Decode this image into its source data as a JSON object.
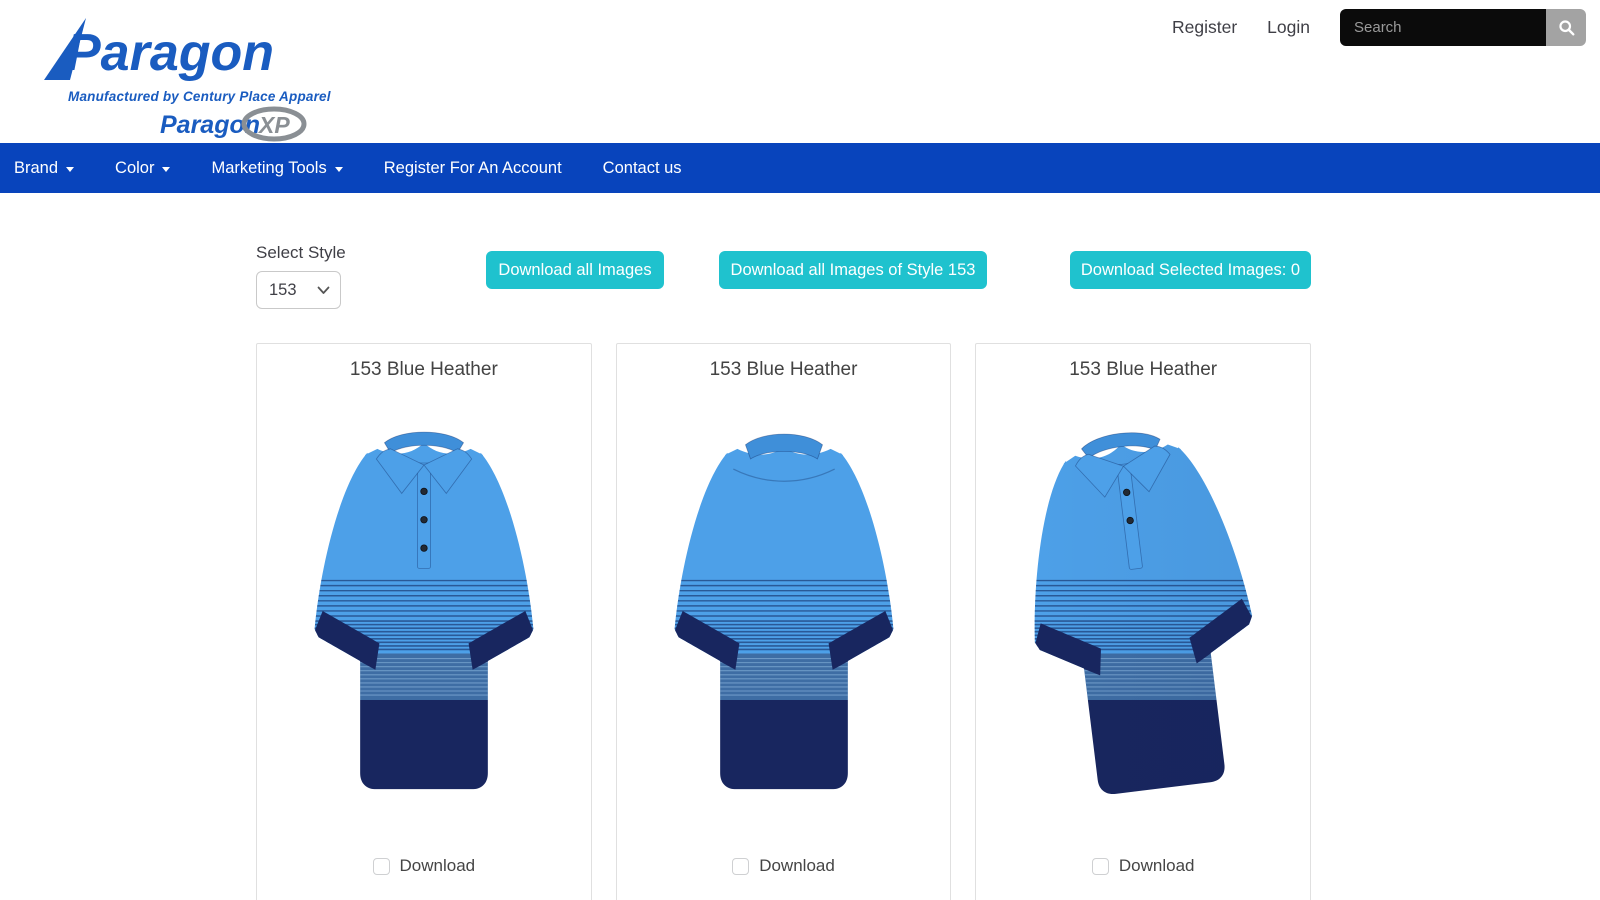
{
  "header": {
    "logo": {
      "brand": "Paragon",
      "tagline": "Manufactured by Century Place Apparel",
      "xp_brand": "Paragon",
      "xp_suffix": "XP"
    },
    "register_label": "Register",
    "login_label": "Login",
    "search": {
      "placeholder": "Search"
    }
  },
  "nav": {
    "items": [
      {
        "label": "Brand",
        "has_dropdown": true
      },
      {
        "label": "Color",
        "has_dropdown": true
      },
      {
        "label": "Marketing Tools",
        "has_dropdown": true
      },
      {
        "label": "Register For An Account",
        "has_dropdown": false
      },
      {
        "label": "Contact us",
        "has_dropdown": false
      }
    ]
  },
  "controls": {
    "select_style_label": "Select Style",
    "style_select_value": "153",
    "download_all_label": "Download all Images",
    "download_style_label": "Download all Images of Style 153",
    "download_selected_label": "Download Selected Images: 0",
    "selected_count": "0"
  },
  "products": {
    "cards": [
      {
        "title": "153 Blue Heather",
        "view": "front",
        "download_label": "Download",
        "checked": false
      },
      {
        "title": "153 Blue Heather",
        "view": "back",
        "download_label": "Download",
        "checked": false
      },
      {
        "title": "153 Blue Heather",
        "view": "side",
        "download_label": "Download",
        "checked": false
      }
    ]
  },
  "colors": {
    "accent_teal": "#1FC2CE",
    "nav_blue": "#0844BC",
    "logo_blue": "#1A5CC0",
    "logo_gray": "#8A8F94",
    "search_bg": "#0B0B0B",
    "search_button_gray": "#A3A3A3",
    "shirt_light_blue": "#4DA0E8",
    "shirt_light_blue_dark": "#3F8FD9",
    "shirt_steel_blue": "#3E6DA4",
    "shirt_navy": "#18265F",
    "shirt_stripe": "#1D3E78",
    "shirt_stripe_light": "#9CC6EA"
  }
}
